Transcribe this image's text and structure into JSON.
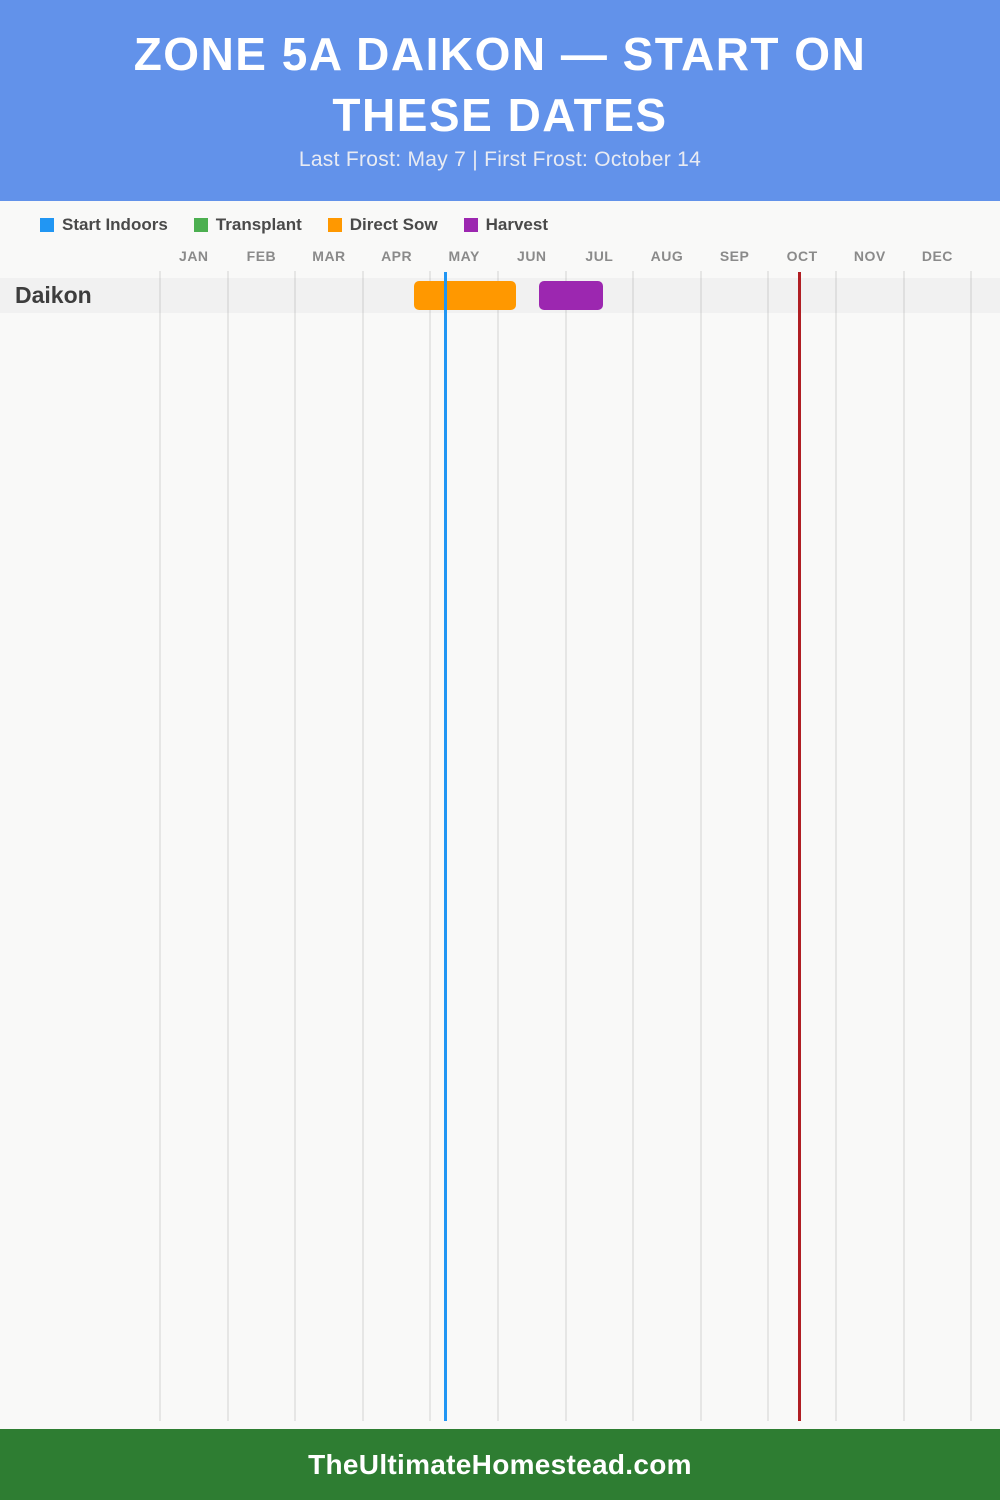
{
  "header": {
    "title_line1": "ZONE 5A DAIKON — START ON",
    "title_line2": "THESE DATES",
    "subtitle": "Last Frost: May 7 | First Frost: October 14",
    "bg_color": "#6292EA",
    "text_color": "#FFFFFF"
  },
  "legend": {
    "items": [
      {
        "label": "Start Indoors",
        "color": "#2196F3"
      },
      {
        "label": "Transplant",
        "color": "#4CAF50"
      },
      {
        "label": "Direct Sow",
        "color": "#FF9800"
      },
      {
        "label": "Harvest",
        "color": "#9C27B0"
      }
    ]
  },
  "footer": {
    "text": "TheUltimateHomestead.com",
    "bg_color": "#2E7D32"
  },
  "chart_data": {
    "type": "bar",
    "subtype": "gantt-timeline",
    "title": "ZONE 5A DAIKON — START ON THESE DATES",
    "x_axis": {
      "unit": "months",
      "labels": [
        "JAN",
        "FEB",
        "MAR",
        "APR",
        "MAY",
        "JUN",
        "JUL",
        "AUG",
        "SEP",
        "OCT",
        "NOV",
        "DEC"
      ],
      "range_months": [
        0,
        12
      ],
      "grid": true
    },
    "rows": [
      {
        "label": "Daikon",
        "bars": [
          {
            "series": "Direct Sow",
            "color": "#FF9800",
            "start_date": "Apr 23",
            "end_date": "Jun 8",
            "start_month_frac": 3.76,
            "end_month_frac": 5.27
          },
          {
            "series": "Harvest",
            "color": "#9C27B0",
            "start_date": "Jun 19",
            "end_date": "Jul 17",
            "start_month_frac": 5.61,
            "end_month_frac": 6.55
          }
        ]
      }
    ],
    "reference_lines": [
      {
        "label": "Last Frost",
        "date": "May 7",
        "color": "#2196F3",
        "month_frac": 4.23
      },
      {
        "label": "First Frost",
        "date": "October 14",
        "color": "#B01E23",
        "month_frac": 9.46
      }
    ],
    "legend_position": "top-left",
    "legend_entries": [
      "Start Indoors",
      "Transplant",
      "Direct Sow",
      "Harvest"
    ]
  }
}
